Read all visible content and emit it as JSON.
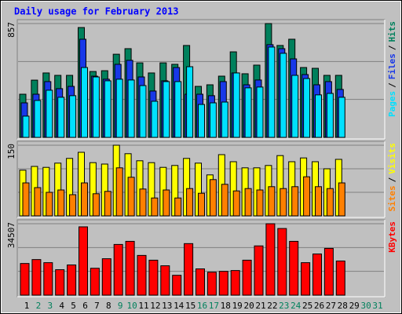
{
  "title": "Daily usage for February 2013",
  "legend_separator": "/",
  "chart_data": [
    {
      "type": "bar",
      "ylim": [
        0,
        857
      ],
      "yticks": [
        857
      ],
      "grid": true,
      "series": [
        {
          "name": "Hits",
          "color": "#00805c",
          "values": [
            325,
            431,
            485,
            467,
            467,
            827,
            496,
            502,
            626,
            668,
            561,
            485,
            561,
            550,
            692,
            384,
            396,
            461,
            644,
            479,
            544,
            857,
            692,
            739,
            526,
            520,
            467,
            467,
            null,
            null,
            null
          ]
        },
        {
          "name": "Files",
          "color": "#1838e8",
          "values": [
            260,
            325,
            420,
            367,
            384,
            739,
            461,
            438,
            550,
            580,
            455,
            349,
            426,
            526,
            325,
            325,
            314,
            420,
            485,
            396,
            432,
            698,
            668,
            591,
            473,
            396,
            420,
            361,
            null,
            null,
            null
          ]
        },
        {
          "name": "Pages",
          "color": "#00e0ff",
          "values": [
            160,
            278,
            355,
            302,
            314,
            526,
            455,
            426,
            438,
            432,
            390,
            272,
            420,
            420,
            532,
            248,
            260,
            266,
            485,
            373,
            379,
            680,
            633,
            467,
            443,
            320,
            331,
            302,
            null,
            null,
            null
          ]
        }
      ]
    },
    {
      "type": "bar",
      "ylim": [
        0,
        150
      ],
      "yticks": [
        150
      ],
      "grid": true,
      "series": [
        {
          "name": "Visits",
          "color": "#ffff00",
          "values": [
            97,
            105,
            103,
            112,
            122,
            135,
            113,
            110,
            150,
            132,
            117,
            113,
            103,
            107,
            122,
            112,
            87,
            130,
            115,
            102,
            102,
            107,
            128,
            115,
            123,
            115,
            100,
            120,
            null,
            null,
            null
          ]
        },
        {
          "name": "Sites",
          "color": "#ff8000",
          "values": [
            70,
            60,
            50,
            55,
            45,
            70,
            47,
            52,
            102,
            82,
            57,
            38,
            55,
            38,
            58,
            48,
            77,
            67,
            53,
            58,
            55,
            62,
            58,
            62,
            83,
            62,
            58,
            70,
            null,
            null,
            null
          ]
        }
      ]
    },
    {
      "type": "bar",
      "ylim": [
        0,
        34507
      ],
      "yticks": [
        34507
      ],
      "grid": true,
      "categories": [
        "1",
        "2",
        "3",
        "4",
        "5",
        "6",
        "7",
        "8",
        "9",
        "10",
        "11",
        "12",
        "13",
        "14",
        "15",
        "16",
        "17",
        "18",
        "19",
        "20",
        "21",
        "22",
        "23",
        "24",
        "25",
        "26",
        "27",
        "28",
        "29",
        "30",
        "31"
      ],
      "label_colors": [
        "#000000",
        "#00805c",
        "#00805c",
        "#000000",
        "#000000",
        "#000000",
        "#000000",
        "#000000",
        "#00805c",
        "#00805c",
        "#000000",
        "#000000",
        "#000000",
        "#000000",
        "#000000",
        "#00805c",
        "#00805c",
        "#000000",
        "#000000",
        "#000000",
        "#000000",
        "#000000",
        "#00805c",
        "#00805c",
        "#000000",
        "#000000",
        "#000000",
        "#000000",
        "#000000",
        "#00805c",
        "#00805c"
      ],
      "series": [
        {
          "name": "KBytes",
          "color": "#ff0000",
          "values": [
            15300,
            17200,
            15700,
            12300,
            14600,
            33000,
            13000,
            17600,
            24500,
            26000,
            19200,
            16900,
            14200,
            9600,
            24900,
            12700,
            11100,
            11500,
            11900,
            16900,
            23800,
            34507,
            32200,
            26000,
            15700,
            19900,
            22600,
            16500,
            null,
            null,
            null
          ]
        }
      ]
    }
  ]
}
